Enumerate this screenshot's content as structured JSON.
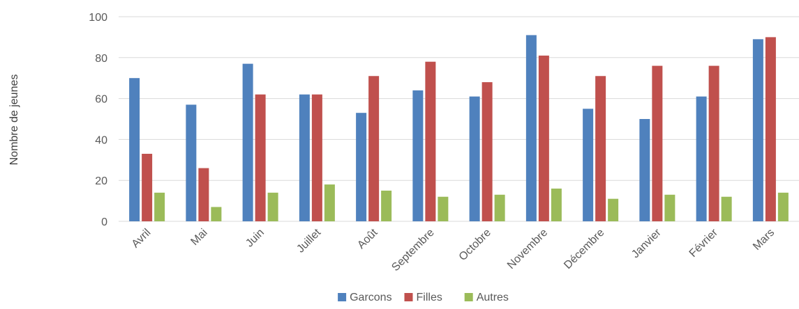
{
  "chart_data": {
    "type": "bar",
    "title": "",
    "xlabel": "",
    "ylabel": "Nombre de jeunes",
    "ylim": [
      0,
      100
    ],
    "yticks": [
      "0",
      "20",
      "40",
      "60",
      "80",
      "100"
    ],
    "grid": true,
    "legend_position": "bottom",
    "categories": [
      "Avril",
      "Mai",
      "Juin",
      "Juillet",
      "Août",
      "Septembre",
      "Octobre",
      "Novembre",
      "Décembre",
      "Janvier",
      "Février",
      "Mars"
    ],
    "series": [
      {
        "name": "Garcons",
        "color": "#4f81bd",
        "values": [
          70,
          57,
          77,
          62,
          53,
          64,
          61,
          91,
          55,
          50,
          61,
          89
        ]
      },
      {
        "name": "Filles",
        "color": "#c0504d",
        "values": [
          33,
          26,
          62,
          62,
          71,
          78,
          68,
          81,
          71,
          76,
          76,
          90
        ]
      },
      {
        "name": "Autres",
        "color": "#9bbb59",
        "values": [
          14,
          7,
          14,
          18,
          15,
          12,
          13,
          16,
          11,
          13,
          12,
          14
        ]
      }
    ]
  }
}
